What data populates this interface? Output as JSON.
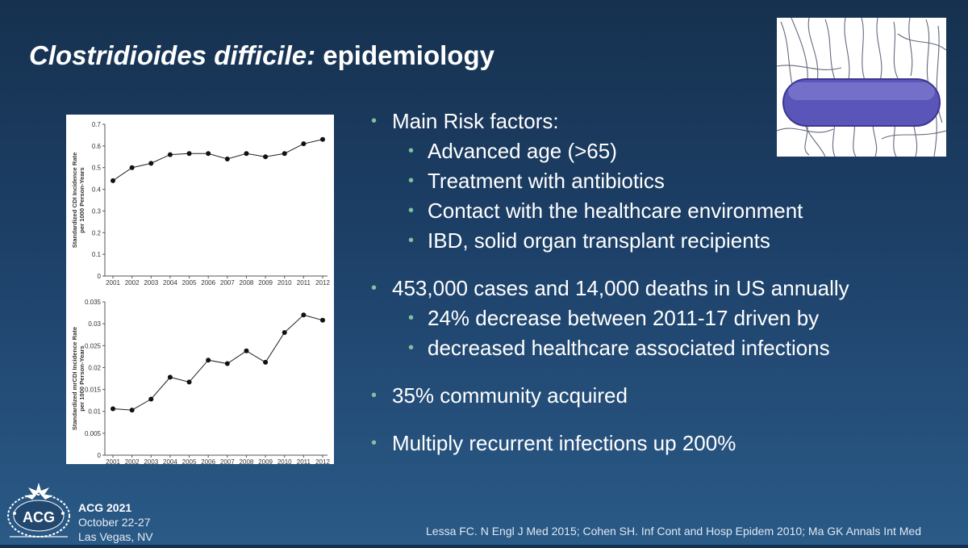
{
  "slide": {
    "title_italic": "Clostridioides difficile:",
    "title_rest": " epidemiology"
  },
  "bullets": [
    {
      "level": 1,
      "text": "Main Risk factors:"
    },
    {
      "level": 2,
      "text": "Advanced age (>65)"
    },
    {
      "level": 2,
      "text": "Treatment with antibiotics"
    },
    {
      "level": 2,
      "text": "Contact with the healthcare environment"
    },
    {
      "level": 2,
      "text": "IBD, solid organ transplant recipients"
    },
    {
      "level": 1,
      "text": "453,000 cases and 14,000 deaths in US annually",
      "gap_before": true
    },
    {
      "level": 2,
      "text": "24% decrease between 2011-17 driven by"
    },
    {
      "level": 2,
      "text": "decreased healthcare associated infections"
    },
    {
      "level": 1,
      "text": "35% community acquired",
      "gap_before": true
    },
    {
      "level": 1,
      "text": "Multiply recurrent infections up 200%",
      "gap_before": true
    }
  ],
  "bullet_symbol": "•",
  "footer": {
    "conference": "ACG 2021",
    "dates": "October 22-27",
    "location": "Las Vegas, NV",
    "references": "Lessa FC.  N Engl J Med 2015; Cohen SH. Inf Cont and Hosp Epidem 2010; Ma GK Annals Int Med"
  },
  "logo": {
    "line1": "LAS VEGAS",
    "line2": "ACG 2021",
    "line3": "NEVADA"
  },
  "colors": {
    "bullet": "#7fc2a0",
    "background_top": "#16314f",
    "background_bottom": "#2a5a87"
  },
  "chart_data": [
    {
      "type": "line",
      "ylabel": "Standardized CDI Incidence Rate per 1000 Person-Years",
      "categories": [
        "2001",
        "2002",
        "2003",
        "2004",
        "2005",
        "2006",
        "2007",
        "2008",
        "2009",
        "2010",
        "2011",
        "2012"
      ],
      "values": [
        0.44,
        0.5,
        0.52,
        0.56,
        0.565,
        0.565,
        0.54,
        0.565,
        0.55,
        0.565,
        0.61,
        0.63
      ],
      "ylim": [
        0,
        0.7
      ],
      "yticks": [
        "0",
        "0.1",
        "0.2",
        "0.3",
        "0.4",
        "0.5",
        "0.6",
        "0.7"
      ]
    },
    {
      "type": "line",
      "ylabel": "Standardized mrCDI Incidence Rate per 1000 Person-Years",
      "categories": [
        "2001",
        "2002",
        "2003",
        "2004",
        "2005",
        "2006",
        "2007",
        "2008",
        "2009",
        "2010",
        "2011",
        "2012"
      ],
      "values": [
        0.0106,
        0.0103,
        0.0128,
        0.0178,
        0.0167,
        0.0217,
        0.0209,
        0.0238,
        0.0212,
        0.028,
        0.032,
        0.0308
      ],
      "ylim": [
        0,
        0.035
      ],
      "yticks": [
        "0",
        "0.005",
        "0.01",
        "0.015",
        "0.02",
        "0.025",
        "0.03",
        "0.035"
      ]
    }
  ]
}
